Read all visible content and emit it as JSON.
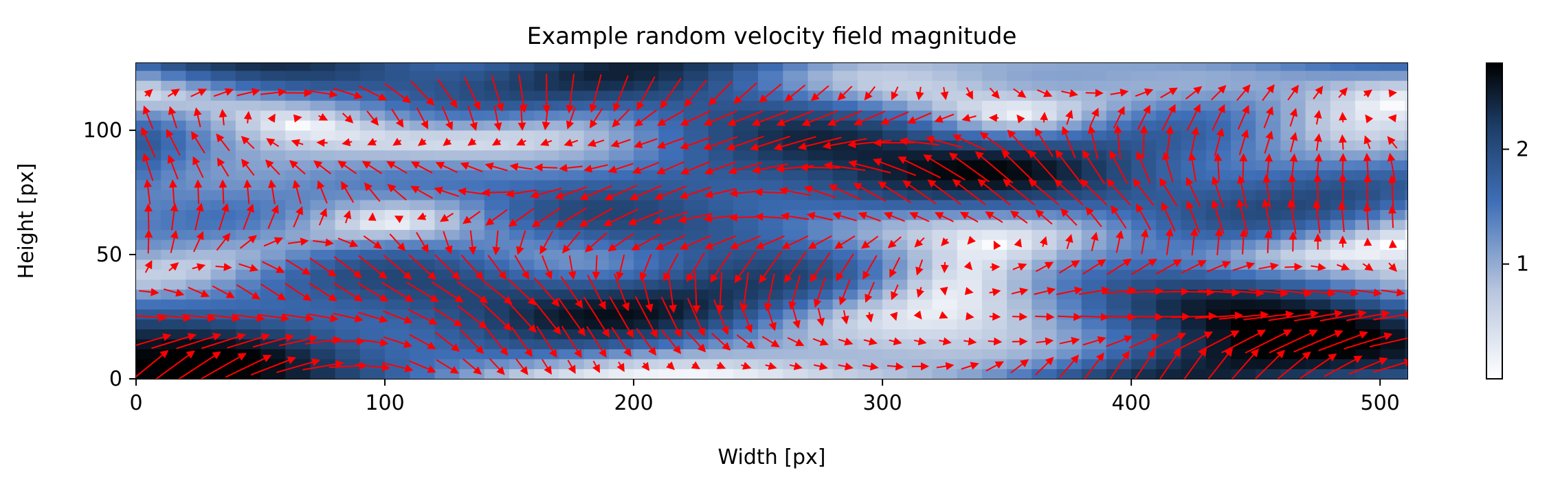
{
  "chart_data": {
    "type": "heatmap",
    "title": "Example random velocity field magnitude",
    "xlabel": "Width [px]",
    "ylabel": "Height [px]",
    "xlim": [
      0,
      511
    ],
    "ylim": [
      0,
      127
    ],
    "x_ticks": [
      0,
      100,
      200,
      300,
      400,
      500
    ],
    "y_ticks": [
      0,
      50,
      100
    ],
    "colorbar": {
      "ticks": [
        1,
        2
      ],
      "range": [
        0.0,
        2.75
      ],
      "colors": [
        "#ffffff",
        "#b7c5dd",
        "#3f6fb8",
        "#1d3d66",
        "#000000"
      ]
    },
    "grid": false,
    "overlay": "quiver",
    "arrow_color": "#ff0000",
    "arrow_spacing": 10,
    "field_note": "magnitude field with vector arrows"
  }
}
